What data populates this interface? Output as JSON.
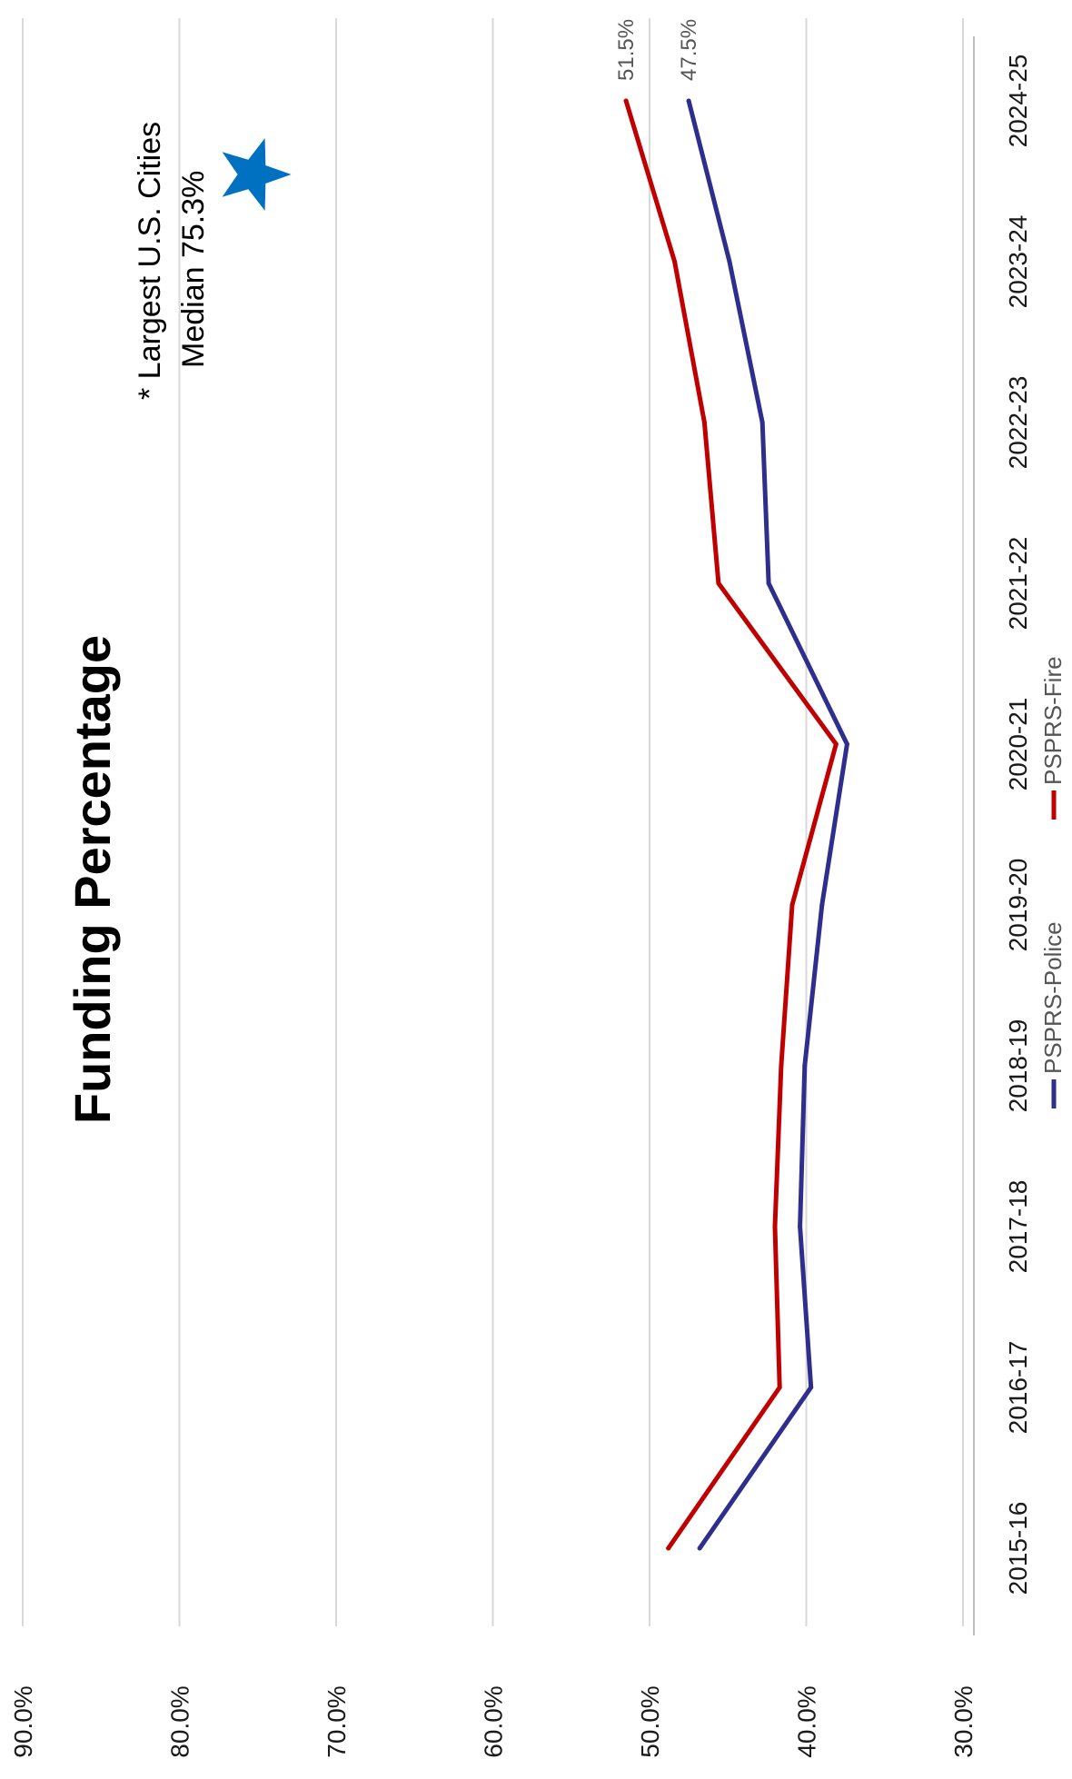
{
  "chart_data": {
    "type": "line",
    "title": "Funding Percentage",
    "categories": [
      "2015-16",
      "2016-17",
      "2017-18",
      "2018-19",
      "2019-20",
      "2020-21",
      "2021-22",
      "2022-23",
      "2023-24",
      "2024-25"
    ],
    "series": [
      {
        "name": "PSPRS-Police",
        "color": "#2e2e8c",
        "values": [
          46.8,
          39.7,
          40.4,
          40.1,
          39.0,
          37.4,
          42.4,
          42.8,
          44.9,
          47.5
        ]
      },
      {
        "name": "PSPRS-Fire",
        "color": "#c00000",
        "values": [
          48.8,
          41.7,
          42.0,
          41.6,
          40.9,
          38.1,
          45.6,
          46.5,
          48.4,
          51.5
        ]
      }
    ],
    "end_labels": [
      "47.5%",
      "51.5%"
    ],
    "y_ticks": [
      "30.0%",
      "40.0%",
      "50.0%",
      "60.0%",
      "70.0%",
      "80.0%",
      "90.0%"
    ],
    "ylim": [
      30,
      90
    ],
    "rotation": "rotated 90 degrees clockwise",
    "grid": true,
    "legend_position": "bottom",
    "annotation": {
      "marker": "star",
      "marker_color": "#0070c0",
      "value": 75.3,
      "line1": "* Largest U.S. Cities",
      "line2": "Median 75.3%"
    }
  }
}
